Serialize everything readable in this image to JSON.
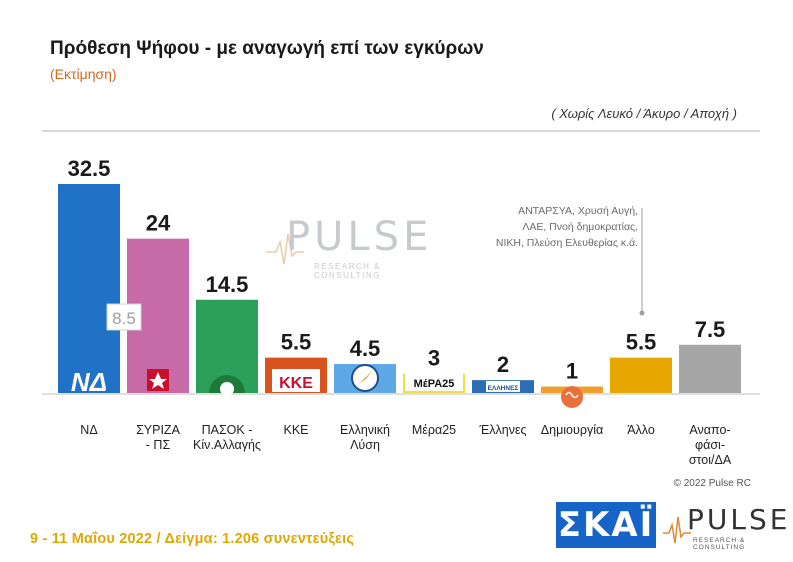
{
  "header": {
    "title": "Πρόθεση Ψήφου - με αναγωγή επί των εγκύρων",
    "subtitle": "(Εκτίμηση)",
    "note": "( Χωρίς Λευκό / Άκυρο / Αποχή )"
  },
  "chart_data": {
    "type": "bar",
    "title": "Πρόθεση Ψήφου - με αναγωγή επί των εγκύρων",
    "subtitle": "(Εκτίμηση)",
    "categories": [
      [
        "ΝΔ"
      ],
      [
        "ΣΥΡΙΖΑ",
        "- ΠΣ"
      ],
      [
        "ΠΑΣΟΚ -",
        "Κίν.Αλλαγής"
      ],
      [
        "ΚΚΕ"
      ],
      [
        "Ελληνική",
        "Λύση"
      ],
      [
        "Μέρα25"
      ],
      [
        "Έλληνες"
      ],
      [
        "Δημιουργία"
      ],
      [
        "Άλλο"
      ],
      [
        "Αναπο-",
        "φάσι-",
        "στοι/ΔΑ"
      ]
    ],
    "values": [
      32.5,
      24,
      14.5,
      5.5,
      4.5,
      3,
      2,
      1,
      5.5,
      7.5
    ],
    "value_labels": [
      "32.5",
      "24",
      "14.5",
      "5.5",
      "4.5",
      "3",
      "2",
      "1",
      "5.5",
      "7.5"
    ],
    "colors": [
      "#1f72c6",
      "#c76ba8",
      "#2ca05a",
      "#d9531e",
      "#5fa8e6",
      "#f0e040",
      "#2c6db5",
      "#f0a030",
      "#e6a700",
      "#a6a6a6"
    ],
    "ylim": [
      0,
      34
    ],
    "gap_annotation": {
      "between": [
        0,
        1
      ],
      "value": "8.5"
    },
    "legend": "none",
    "grid": false
  },
  "logos": {
    "nd": "ΝΔ",
    "kke": "ΚΚΕ",
    "mera25": "ΜέΡΑ25",
    "ellines": "ΕΛΛΗΝΕΣ"
  },
  "other_note": [
    "ΑΝΤΑΡΣΥΑ, Χρυσή Αυγή,",
    "ΛΑΕ, Πνοή δημοκρατίας,",
    "ΝΙΚΗ, Πλεύση Ελευθερίας κ.ά."
  ],
  "copyright": "© 2022 Pulse RC",
  "footer": "9 - 11  Μαΐου  2022  /  Δείγμα:  1.206 συνεντεύξεις",
  "brand": {
    "skai": "ΣΚΑΪ",
    "pulse": "PULSE",
    "pulse_sub": "RESEARCH & CONSULTING"
  }
}
